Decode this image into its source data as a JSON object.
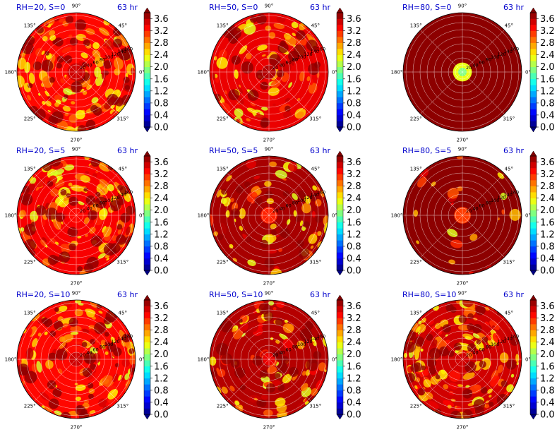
{
  "chart_data": {
    "type": "heatmap",
    "projection": "polar",
    "grid": true,
    "angle_tick_labels": [
      "90°",
      "45°",
      "0°",
      "315°",
      "270°",
      "225°",
      "180°",
      "135°"
    ],
    "radial_tick_labels": [
      "20",
      "40",
      "60",
      "80",
      "100",
      "120",
      "140",
      "160"
    ],
    "colorbar": {
      "colormap": "jet",
      "ticks": [
        "0.0",
        "0.4",
        "0.8",
        "1.2",
        "1.6",
        "2.0",
        "2.4",
        "2.8",
        "3.2",
        "3.6"
      ],
      "range": [
        0,
        3.8
      ],
      "extend": "both"
    },
    "panels": [
      {
        "label": "RH=20, S=0",
        "time": "63 hr",
        "background_value": 3.3,
        "center_value": 3.5,
        "patch_density": 0.55,
        "core_radius": 0.15
      },
      {
        "label": "RH=50, S=0",
        "time": "63 hr",
        "background_value": 3.4,
        "center_value": 3.6,
        "patch_density": 0.35,
        "core_radius": 0.12
      },
      {
        "label": "RH=80, S=0",
        "time": "63 hr",
        "background_value": 3.75,
        "center_value": 2.3,
        "patch_density": 0.0,
        "core_radius": 0.16
      },
      {
        "label": "RH=20, S=5",
        "time": "63 hr",
        "background_value": 3.35,
        "center_value": 3.3,
        "patch_density": 0.55,
        "core_radius": 0.14
      },
      {
        "label": "RH=50, S=5",
        "time": "63 hr",
        "background_value": 3.65,
        "center_value": 3.2,
        "patch_density": 0.25,
        "core_radius": 0.14
      },
      {
        "label": "RH=80, S=5",
        "time": "63 hr",
        "background_value": 3.75,
        "center_value": 3.1,
        "patch_density": 0.08,
        "core_radius": 0.14
      },
      {
        "label": "RH=20, S=10",
        "time": "63 hr",
        "background_value": 3.3,
        "center_value": 3.5,
        "patch_density": 0.5,
        "core_radius": 0.12
      },
      {
        "label": "RH=50, S=10",
        "time": "63 hr",
        "background_value": 3.6,
        "center_value": 3.4,
        "patch_density": 0.35,
        "core_radius": 0.1
      },
      {
        "label": "RH=80, S=10",
        "time": "63 hr",
        "background_value": 3.5,
        "center_value": 3.5,
        "patch_density": 0.55,
        "core_radius": 0.1
      }
    ]
  }
}
